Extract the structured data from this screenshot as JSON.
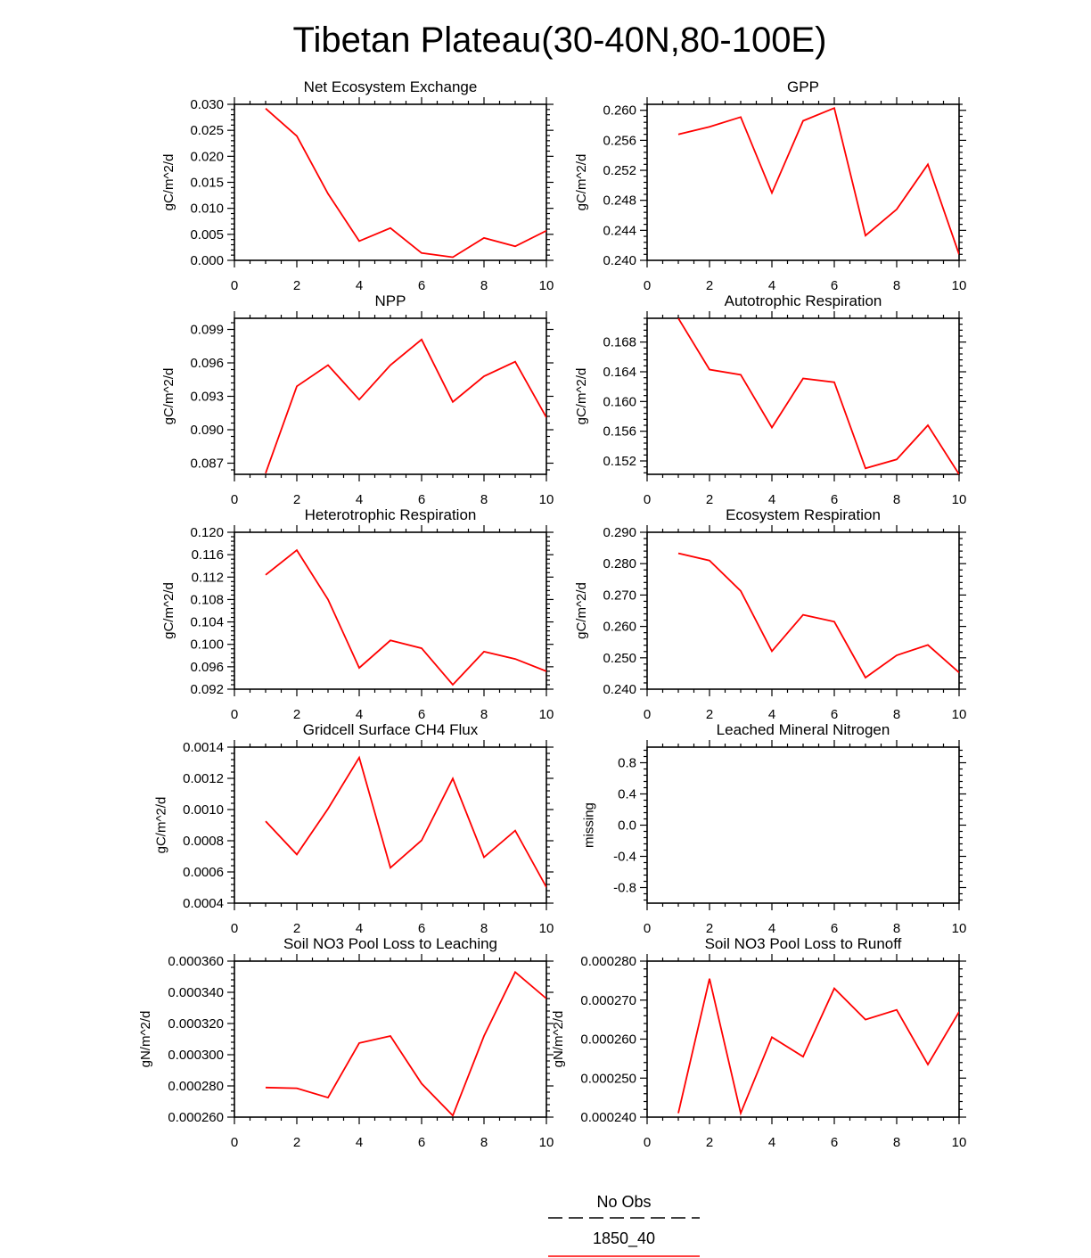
{
  "figure": {
    "title": "Tibetan Plateau(30-40N,80-100E)"
  },
  "legend": {
    "entries": [
      {
        "label": "No Obs",
        "color": "#000000",
        "dash": "dashed"
      },
      {
        "label": "1850_40",
        "color": "#ff0000",
        "dash": "solid"
      }
    ]
  },
  "chart_data": [
    {
      "type": "line",
      "title": "Net Ecosystem Exchange",
      "xlabel": "",
      "ylabel": "gC/m^2/d",
      "xlim": [
        0,
        10
      ],
      "ylim": [
        0.0,
        0.03
      ],
      "xticks": [
        0,
        2,
        4,
        6,
        8,
        10
      ],
      "yticks": [
        0.0,
        0.005,
        0.01,
        0.015,
        0.02,
        0.025,
        0.03
      ],
      "ytick_labels": [
        "0.000",
        "0.005",
        "0.010",
        "0.015",
        "0.020",
        "0.025",
        "0.030"
      ],
      "series": [
        {
          "name": "1850_40",
          "color": "#ff0000",
          "x": [
            1,
            2,
            3,
            4,
            5,
            6,
            7,
            8,
            9,
            10
          ],
          "values": [
            0.0292,
            0.0239,
            0.0128,
            0.0037,
            0.0062,
            0.0014,
            0.0006,
            0.0043,
            0.0027,
            0.0057
          ]
        }
      ]
    },
    {
      "type": "line",
      "title": "GPP",
      "xlabel": "",
      "ylabel": "gC/m^2/d",
      "xlim": [
        0,
        10
      ],
      "ylim": [
        0.24,
        0.2608
      ],
      "xticks": [
        0,
        2,
        4,
        6,
        8,
        10
      ],
      "yticks": [
        0.24,
        0.244,
        0.248,
        0.252,
        0.256,
        0.26
      ],
      "ytick_labels": [
        "0.240",
        "0.244",
        "0.248",
        "0.252",
        "0.256",
        "0.260"
      ],
      "series": [
        {
          "name": "1850_40",
          "color": "#ff0000",
          "x": [
            1,
            2,
            3,
            4,
            5,
            6,
            7,
            8,
            9,
            10
          ],
          "values": [
            0.2568,
            0.2578,
            0.2591,
            0.249,
            0.2586,
            0.2603,
            0.2433,
            0.2468,
            0.2528,
            0.2408
          ]
        }
      ]
    },
    {
      "type": "line",
      "title": "NPP",
      "xlabel": "",
      "ylabel": "gC/m^2/d",
      "xlim": [
        0,
        10
      ],
      "ylim": [
        0.086,
        0.1
      ],
      "xticks": [
        0,
        2,
        4,
        6,
        8,
        10
      ],
      "yticks": [
        0.087,
        0.09,
        0.093,
        0.096,
        0.099
      ],
      "ytick_labels": [
        "0.087",
        "0.090",
        "0.093",
        "0.096",
        "0.099"
      ],
      "series": [
        {
          "name": "1850_40",
          "color": "#ff0000",
          "x": [
            1,
            2,
            3,
            4,
            5,
            6,
            7,
            8,
            9,
            10
          ],
          "values": [
            0.0861,
            0.0939,
            0.0958,
            0.0927,
            0.0958,
            0.0981,
            0.0925,
            0.0948,
            0.0961,
            0.0911
          ]
        }
      ]
    },
    {
      "type": "line",
      "title": "Autotrophic Respiration",
      "xlabel": "",
      "ylabel": "gC/m^2/d",
      "xlim": [
        0,
        10
      ],
      "ylim": [
        0.1502,
        0.1712
      ],
      "xticks": [
        0,
        2,
        4,
        6,
        8,
        10
      ],
      "yticks": [
        0.152,
        0.156,
        0.16,
        0.164,
        0.168
      ],
      "ytick_labels": [
        "0.152",
        "0.156",
        "0.160",
        "0.164",
        "0.168"
      ],
      "series": [
        {
          "name": "1850_40",
          "color": "#ff0000",
          "x": [
            1,
            2,
            3,
            4,
            5,
            6,
            7,
            8,
            9,
            10
          ],
          "values": [
            0.1712,
            0.1643,
            0.1636,
            0.1565,
            0.1631,
            0.1626,
            0.151,
            0.1522,
            0.1568,
            0.1502
          ]
        }
      ]
    },
    {
      "type": "line",
      "title": "Heterotrophic Respiration",
      "xlabel": "",
      "ylabel": "gC/m^2/d",
      "xlim": [
        0,
        10
      ],
      "ylim": [
        0.092,
        0.12
      ],
      "xticks": [
        0,
        2,
        4,
        6,
        8,
        10
      ],
      "yticks": [
        0.092,
        0.096,
        0.1,
        0.104,
        0.108,
        0.112,
        0.116,
        0.12
      ],
      "ytick_labels": [
        "0.092",
        "0.096",
        "0.100",
        "0.104",
        "0.108",
        "0.112",
        "0.116",
        "0.120"
      ],
      "series": [
        {
          "name": "1850_40",
          "color": "#ff0000",
          "x": [
            1,
            2,
            3,
            4,
            5,
            6,
            7,
            8,
            9,
            10
          ],
          "values": [
            0.1124,
            0.1168,
            0.108,
            0.0958,
            0.1007,
            0.0993,
            0.0928,
            0.0987,
            0.0974,
            0.0952
          ]
        }
      ]
    },
    {
      "type": "line",
      "title": "Ecosystem Respiration",
      "xlabel": "",
      "ylabel": "gC/m^2/d",
      "xlim": [
        0,
        10
      ],
      "ylim": [
        0.24,
        0.29
      ],
      "xticks": [
        0,
        2,
        4,
        6,
        8,
        10
      ],
      "yticks": [
        0.24,
        0.25,
        0.26,
        0.27,
        0.28,
        0.29
      ],
      "ytick_labels": [
        "0.240",
        "0.250",
        "0.260",
        "0.270",
        "0.280",
        "0.290"
      ],
      "series": [
        {
          "name": "1850_40",
          "color": "#ff0000",
          "x": [
            1,
            2,
            3,
            4,
            5,
            6,
            7,
            8,
            9,
            10
          ],
          "values": [
            0.2833,
            0.281,
            0.2713,
            0.2521,
            0.2637,
            0.2615,
            0.2437,
            0.2508,
            0.2541,
            0.2453
          ]
        }
      ]
    },
    {
      "type": "line",
      "title": "Gridcell Surface CH4 Flux",
      "xlabel": "",
      "ylabel": "gC/m^2/d",
      "xlim": [
        0,
        10
      ],
      "ylim": [
        0.0004,
        0.0014
      ],
      "xticks": [
        0,
        2,
        4,
        6,
        8,
        10
      ],
      "yticks": [
        0.0004,
        0.0006,
        0.0008,
        0.001,
        0.0012,
        0.0014
      ],
      "ytick_labels": [
        "0.0004",
        "0.0006",
        "0.0008",
        "0.0010",
        "0.0012",
        "0.0014"
      ],
      "series": [
        {
          "name": "1850_40",
          "color": "#ff0000",
          "x": [
            1,
            2,
            3,
            4,
            5,
            6,
            7,
            8,
            9,
            10
          ],
          "values": [
            0.000925,
            0.000712,
            0.001005,
            0.001333,
            0.000627,
            0.000802,
            0.001199,
            0.000694,
            0.000865,
            0.000502
          ]
        }
      ]
    },
    {
      "type": "line",
      "title": "Leached Mineral Nitrogen",
      "xlabel": "",
      "ylabel": "missing",
      "xlim": [
        0,
        10
      ],
      "ylim": [
        -1.0,
        1.0
      ],
      "xticks": [
        0,
        2,
        4,
        6,
        8,
        10
      ],
      "yticks": [
        -0.8,
        -0.4,
        0.0,
        0.4,
        0.8
      ],
      "ytick_labels": [
        "-0.8",
        "-0.4",
        "0.0",
        "0.4",
        "0.8"
      ],
      "series": []
    },
    {
      "type": "line",
      "title": "Soil NO3 Pool Loss to Leaching",
      "xlabel": "",
      "ylabel": "gN/m^2/d",
      "xlim": [
        0,
        10
      ],
      "ylim": [
        0.00026,
        0.00036
      ],
      "xticks": [
        0,
        2,
        4,
        6,
        8,
        10
      ],
      "yticks": [
        0.00026,
        0.00028,
        0.0003,
        0.00032,
        0.00034,
        0.00036
      ],
      "ytick_labels": [
        "0.000260",
        "0.000280",
        "0.000300",
        "0.000320",
        "0.000340",
        "0.000360"
      ],
      "series": [
        {
          "name": "1850_40",
          "color": "#ff0000",
          "x": [
            1,
            2,
            3,
            4,
            5,
            6,
            7,
            8,
            9,
            10
          ],
          "values": [
            0.000279,
            0.0002785,
            0.0002725,
            0.0003075,
            0.000312,
            0.0002815,
            0.000261,
            0.000312,
            0.000353,
            0.000336
          ]
        }
      ]
    },
    {
      "type": "line",
      "title": "Soil NO3 Pool Loss to Runoff",
      "xlabel": "",
      "ylabel": "gN/m^2/d",
      "xlim": [
        0,
        10
      ],
      "ylim": [
        0.00024,
        0.00028
      ],
      "xticks": [
        0,
        2,
        4,
        6,
        8,
        10
      ],
      "yticks": [
        0.00024,
        0.00025,
        0.00026,
        0.00027,
        0.00028
      ],
      "ytick_labels": [
        "0.000240",
        "0.000250",
        "0.000260",
        "0.000270",
        "0.000280"
      ],
      "series": [
        {
          "name": "1850_40",
          "color": "#ff0000",
          "x": [
            1,
            2,
            3,
            4,
            5,
            6,
            7,
            8,
            9,
            10
          ],
          "values": [
            0.000241,
            0.0002755,
            0.000241,
            0.0002605,
            0.0002555,
            0.000273,
            0.000265,
            0.0002675,
            0.0002535,
            0.000267
          ]
        }
      ]
    }
  ]
}
